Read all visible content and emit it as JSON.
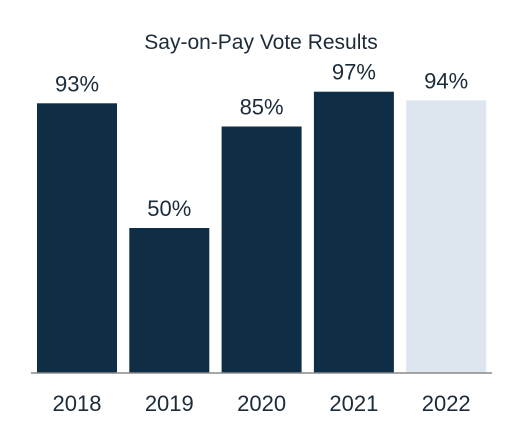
{
  "chart_data": {
    "type": "bar",
    "title": "Say-on-Pay Vote Results",
    "xlabel": "",
    "ylabel": "",
    "categories": [
      "2018",
      "2019",
      "2020",
      "2021",
      "2022"
    ],
    "values": [
      93,
      50,
      85,
      97,
      94
    ],
    "value_labels": [
      "93%",
      "50%",
      "85%",
      "97%",
      "94%"
    ],
    "ylim": [
      0,
      100
    ],
    "grid": false,
    "legend": "none",
    "colors": {
      "bar": "#0f2d45",
      "highlight_bar": "#dde5ee",
      "text": "#1c2b3a",
      "axis": "#8a8a8a"
    },
    "highlight_category": "2022"
  }
}
